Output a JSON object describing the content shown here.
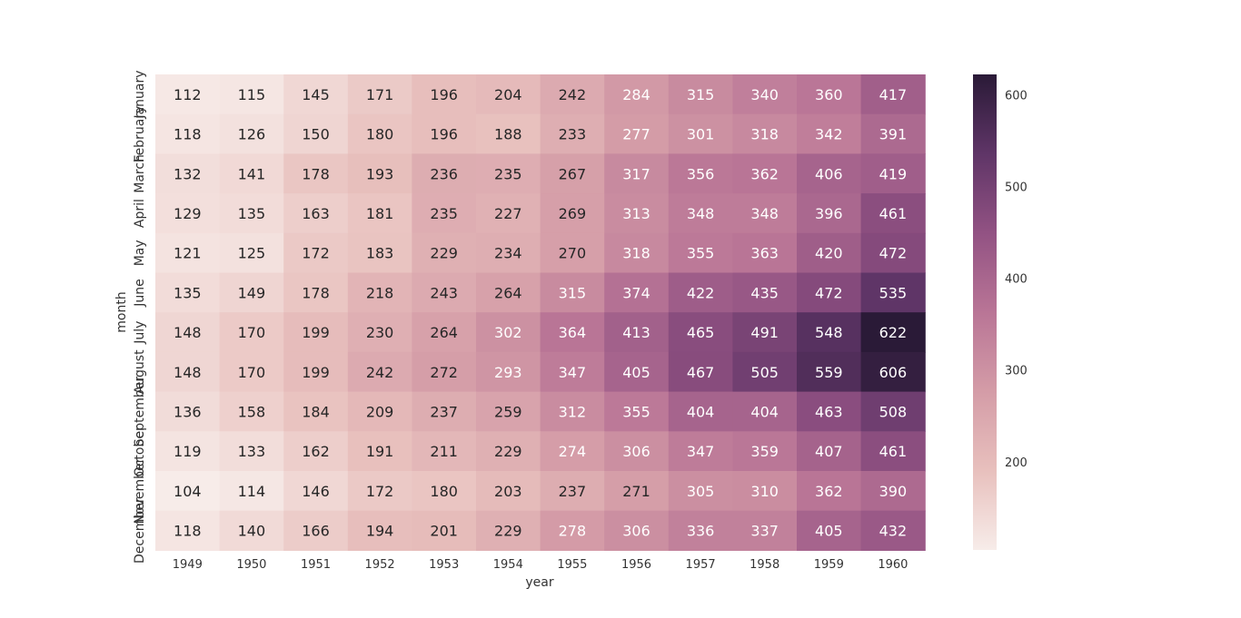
{
  "chart_data": {
    "type": "heatmap",
    "xlabel": "year",
    "ylabel": "month",
    "x_categories": [
      "1949",
      "1950",
      "1951",
      "1952",
      "1953",
      "1954",
      "1955",
      "1956",
      "1957",
      "1958",
      "1959",
      "1960"
    ],
    "y_categories": [
      "January",
      "February",
      "March",
      "April",
      "May",
      "June",
      "July",
      "August",
      "September",
      "October",
      "November",
      "December"
    ],
    "values": [
      [
        112,
        115,
        145,
        171,
        196,
        204,
        242,
        284,
        315,
        340,
        360,
        417
      ],
      [
        118,
        126,
        150,
        180,
        196,
        188,
        233,
        277,
        301,
        318,
        342,
        391
      ],
      [
        132,
        141,
        178,
        193,
        236,
        235,
        267,
        317,
        356,
        362,
        406,
        419
      ],
      [
        129,
        135,
        163,
        181,
        235,
        227,
        269,
        313,
        348,
        348,
        396,
        461
      ],
      [
        121,
        125,
        172,
        183,
        229,
        234,
        270,
        318,
        355,
        363,
        420,
        472
      ],
      [
        135,
        149,
        178,
        218,
        243,
        264,
        315,
        374,
        422,
        435,
        472,
        535
      ],
      [
        148,
        170,
        199,
        230,
        264,
        302,
        364,
        413,
        465,
        491,
        548,
        622
      ],
      [
        148,
        170,
        199,
        242,
        272,
        293,
        347,
        405,
        467,
        505,
        559,
        606
      ],
      [
        136,
        158,
        184,
        209,
        237,
        259,
        312,
        355,
        404,
        404,
        463,
        508
      ],
      [
        119,
        133,
        162,
        191,
        211,
        229,
        274,
        306,
        347,
        359,
        407,
        461
      ],
      [
        104,
        114,
        146,
        172,
        180,
        203,
        237,
        271,
        305,
        310,
        362,
        390
      ],
      [
        118,
        140,
        166,
        194,
        201,
        229,
        278,
        306,
        336,
        337,
        405,
        432
      ]
    ],
    "colorbar": {
      "min": 104,
      "max": 622,
      "ticks": [
        200,
        300,
        400,
        500,
        600
      ],
      "colors": [
        "#f7ece9",
        "#e8c0bd",
        "#d49ca7",
        "#b97596",
        "#925283",
        "#5f3567",
        "#2a1a37"
      ]
    },
    "annotated": true,
    "grid": false
  }
}
